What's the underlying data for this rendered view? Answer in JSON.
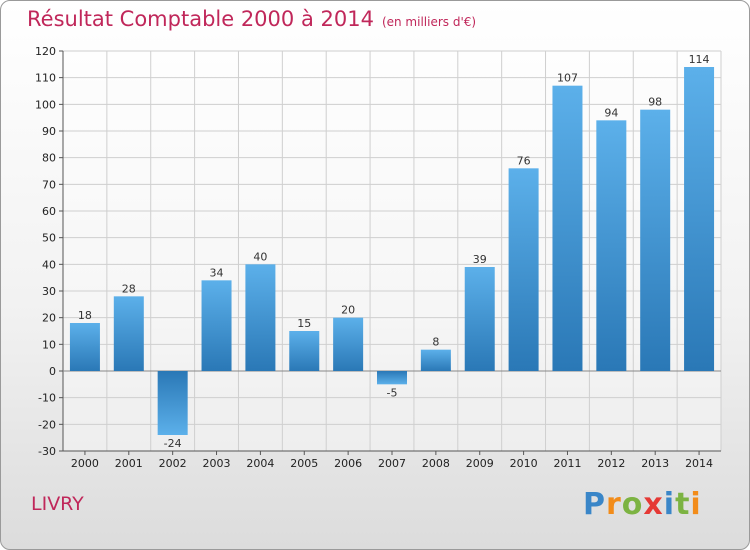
{
  "chart_data": {
    "type": "bar",
    "title": "Résultat Comptable 2000 à 2014",
    "subtitle": "(en milliers d'€)",
    "categories": [
      "2000",
      "2001",
      "2002",
      "2003",
      "2004",
      "2005",
      "2006",
      "2007",
      "2008",
      "2009",
      "2010",
      "2011",
      "2012",
      "2013",
      "2014"
    ],
    "values": [
      18,
      28,
      -24,
      34,
      40,
      15,
      20,
      -5,
      8,
      39,
      76,
      107,
      94,
      98,
      114
    ],
    "ylim": [
      -30,
      120
    ],
    "yticks": [
      -30,
      -20,
      -10,
      0,
      10,
      20,
      30,
      40,
      50,
      60,
      70,
      80,
      90,
      100,
      110,
      120
    ],
    "xlabel": "",
    "ylabel": "",
    "grid": true
  },
  "commune": "LIVRY",
  "logo": {
    "letters": [
      "P",
      "r",
      "o",
      "x",
      "i",
      "t",
      "i"
    ],
    "colors": [
      "#3a86c8",
      "#f28c1a",
      "#7cb342",
      "#e53935",
      "#3a86c8",
      "#7cb342",
      "#f28c1a"
    ]
  },
  "colors": {
    "title": "#c0275a",
    "bar_light": "#5aaee8",
    "bar_dark": "#2a7ab8",
    "grid": "#cfcfcf"
  }
}
